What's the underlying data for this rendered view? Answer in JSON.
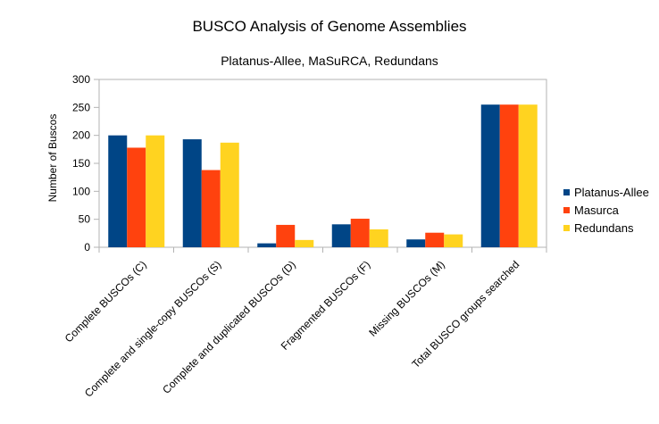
{
  "chart_data": {
    "type": "bar",
    "title": "BUSCO Analysis of Genome Assemblies",
    "subtitle": "Platanus-Allee, MaSuRCA, Redundans",
    "ylabel": "Number of Buscos",
    "xlabel": "",
    "ylim": [
      0,
      300
    ],
    "yticks": [
      0,
      50,
      100,
      150,
      200,
      250,
      300
    ],
    "grid": false,
    "legend_position": "right",
    "categories": [
      "Complete BUSCOs (C)",
      "Complete and single-copy BUSCOs (S)",
      "Complete and duplicated BUSCOs (D)",
      "Fragmented BUSCOs (F)",
      "Missing BUSCOs (M)",
      "Total BUSCO groups searched"
    ],
    "series": [
      {
        "name": "Platanus-Allee",
        "color": "#004586",
        "values": [
          200,
          193,
          7,
          41,
          14,
          255
        ]
      },
      {
        "name": "Masurca",
        "color": "#ff420e",
        "values": [
          178,
          138,
          40,
          51,
          26,
          255
        ]
      },
      {
        "name": "Redundans",
        "color": "#ffd320",
        "values": [
          200,
          187,
          13,
          32,
          23,
          255
        ]
      }
    ]
  }
}
